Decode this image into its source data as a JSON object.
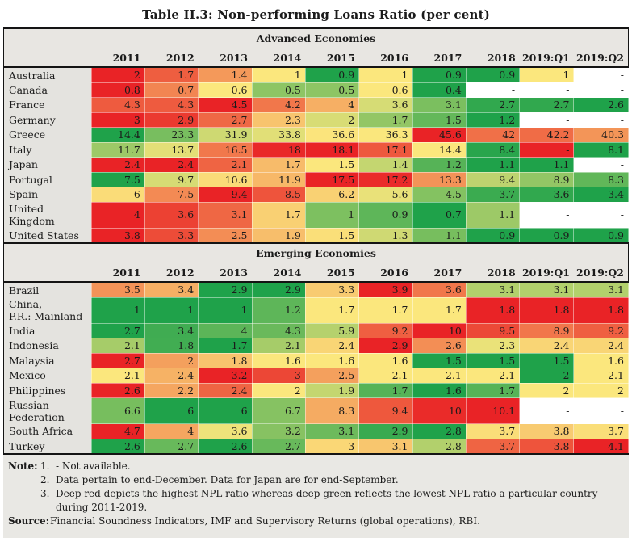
{
  "title": "Table II.3: Non-performing Loans Ratio (per cent)",
  "columns": [
    "2011",
    "2012",
    "2013",
    "2014",
    "2015",
    "2016",
    "2017",
    "2018",
    "2019:Q1",
    "2019:Q2"
  ],
  "heatmap": {
    "low_color": "#1fa24a",
    "mid_color": "#fbe77d",
    "high_color": "#e92326",
    "na_color": "#ffffff",
    "label_bg": "#e4e3df",
    "band_bg": "#e8e6e2",
    "rule": "per-row scale: deep green = lowest, yellow = median, deep red = highest"
  },
  "sections": [
    {
      "header": "Advanced Economies",
      "rows": [
        {
          "label": "Australia",
          "values": [
            "2",
            "1.7",
            "1.4",
            "1",
            "0.9",
            "1",
            "0.9",
            "0.9",
            "1",
            "-"
          ]
        },
        {
          "label": "Canada",
          "values": [
            "0.8",
            "0.7",
            "0.6",
            "0.5",
            "0.5",
            "0.6",
            "0.4",
            "-",
            "-",
            "-"
          ]
        },
        {
          "label": "France",
          "values": [
            "4.3",
            "4.3",
            "4.5",
            "4.2",
            "4",
            "3.6",
            "3.1",
            "2.7",
            "2.7",
            "2.6"
          ]
        },
        {
          "label": "Germany",
          "values": [
            "3",
            "2.9",
            "2.7",
            "2.3",
            "2",
            "1.7",
            "1.5",
            "1.2",
            "-",
            "-"
          ]
        },
        {
          "label": "Greece",
          "values": [
            "14.4",
            "23.3",
            "31.9",
            "33.8",
            "36.6",
            "36.3",
            "45.6",
            "42",
            "42.2",
            "40.3"
          ]
        },
        {
          "label": "Italy",
          "values": [
            "11.7",
            "13.7",
            "16.5",
            "18",
            "18.1",
            "17.1",
            "14.4",
            "8.4",
            "-",
            "8.1"
          ]
        },
        {
          "label": "Japan",
          "values": [
            "2.4",
            "2.4",
            "2.1",
            "1.7",
            "1.5",
            "1.4",
            "1.2",
            "1.1",
            "1.1",
            "-"
          ]
        },
        {
          "label": "Portugal",
          "values": [
            "7.5",
            "9.7",
            "10.6",
            "11.9",
            "17.5",
            "17.2",
            "13.3",
            "9.4",
            "8.9",
            "8.3"
          ]
        },
        {
          "label": "Spain",
          "values": [
            "6",
            "7.5",
            "9.4",
            "8.5",
            "6.2",
            "5.6",
            "4.5",
            "3.7",
            "3.6",
            "3.4"
          ]
        },
        {
          "label": "United Kingdom",
          "values": [
            "4",
            "3.6",
            "3.1",
            "1.7",
            "1",
            "0.9",
            "0.7",
            "1.1",
            "-",
            "-"
          ]
        },
        {
          "label": "United States",
          "values": [
            "3.8",
            "3.3",
            "2.5",
            "1.9",
            "1.5",
            "1.3",
            "1.1",
            "0.9",
            "0.9",
            "0.9"
          ]
        }
      ]
    },
    {
      "header": "Emerging Economies",
      "rows": [
        {
          "label": "Brazil",
          "values": [
            "3.5",
            "3.4",
            "2.9",
            "2.9",
            "3.3",
            "3.9",
            "3.6",
            "3.1",
            "3.1",
            "3.1"
          ]
        },
        {
          "label": "China,\nP.R.: Mainland",
          "values": [
            "1",
            "1",
            "1",
            "1.2",
            "1.7",
            "1.7",
            "1.7",
            "1.8",
            "1.8",
            "1.8"
          ]
        },
        {
          "label": "India",
          "values": [
            "2.7",
            "3.4",
            "4",
            "4.3",
            "5.9",
            "9.2",
            "10",
            "9.5",
            "8.9",
            "9.2"
          ]
        },
        {
          "label": "Indonesia",
          "values": [
            "2.1",
            "1.8",
            "1.7",
            "2.1",
            "2.4",
            "2.9",
            "2.6",
            "2.3",
            "2.4",
            "2.4"
          ]
        },
        {
          "label": "Malaysia",
          "values": [
            "2.7",
            "2",
            "1.8",
            "1.6",
            "1.6",
            "1.6",
            "1.5",
            "1.5",
            "1.5",
            "1.6"
          ]
        },
        {
          "label": "Mexico",
          "values": [
            "2.1",
            "2.4",
            "3.2",
            "3",
            "2.5",
            "2.1",
            "2.1",
            "2.1",
            "2",
            "2.1"
          ]
        },
        {
          "label": "Philippines",
          "values": [
            "2.6",
            "2.2",
            "2.4",
            "2",
            "1.9",
            "1.7",
            "1.6",
            "1.7",
            "2",
            "2"
          ]
        },
        {
          "label": "Russian\nFederation",
          "values": [
            "6.6",
            "6",
            "6",
            "6.7",
            "8.3",
            "9.4",
            "10",
            "10.1",
            "-",
            "-"
          ]
        },
        {
          "label": "South Africa",
          "values": [
            "4.7",
            "4",
            "3.6",
            "3.2",
            "3.1",
            "2.9",
            "2.8",
            "3.7",
            "3.8",
            "3.7"
          ]
        },
        {
          "label": "Turkey",
          "values": [
            "2.6",
            "2.7",
            "2.6",
            "2.7",
            "3",
            "3.1",
            "2.8",
            "3.7",
            "3.8",
            "4.1"
          ]
        }
      ]
    }
  ],
  "overrides": [
    {
      "section": 0,
      "row": 5,
      "col": 8,
      "color": "#e92326",
      "note": "Italy 2019:Q1 dash shown on deep red cell"
    }
  ],
  "notes": {
    "label": "Note:",
    "items": [
      {
        "num": "1.",
        "text": "- Not available."
      },
      {
        "num": "2.",
        "text": "Data pertain to end-December. Data for Japan are for end-September."
      },
      {
        "num": "3.",
        "text": "Deep red depicts the highest NPL ratio whereas deep green reflects the lowest NPL ratio a particular country during 2011-2019."
      }
    ],
    "source_label": "Source:",
    "source": "Financial Soundness Indicators, IMF and Supervisory Returns (global operations), RBI."
  }
}
